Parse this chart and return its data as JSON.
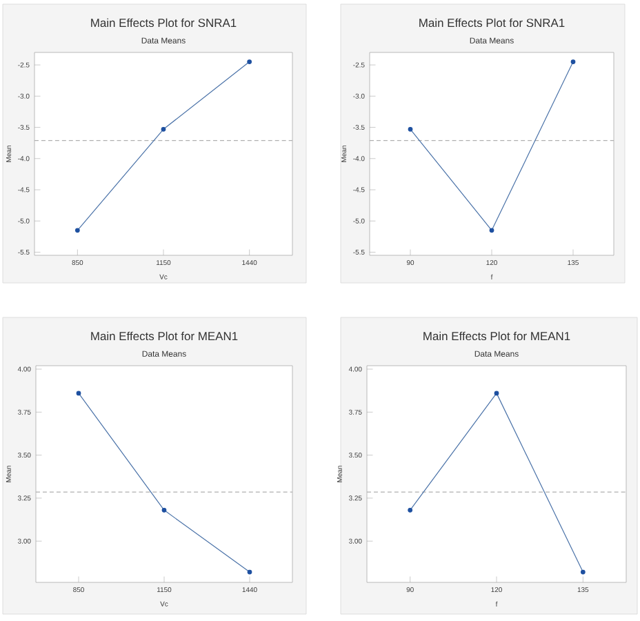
{
  "chart_data": [
    {
      "type": "line",
      "title": "Main Effects Plot for SNRA1",
      "subtitle": "Data Means",
      "xlabel": "Vc",
      "ylabel": "Mean",
      "categories": [
        "850",
        "1150",
        "1440"
      ],
      "values": [
        -5.15,
        -3.53,
        -2.45
      ],
      "color": "#4a72a8",
      "marker": "circle",
      "line_style": "solid",
      "ylim": [
        -5.55,
        -2.3
      ],
      "yticks": [
        -5.5,
        {
          "value": -5,
          "label": "-5.0"
        },
        -4.5,
        {
          "value": -4,
          "label": "-4.0"
        },
        -3.5,
        {
          "value": -3,
          "label": "-3.0"
        },
        -2.5
      ],
      "ref_lines": [
        {
          "axis": "y",
          "value": -3.71,
          "color": "#b0b0b0",
          "line_style": "dashed"
        }
      ],
      "grid": false
    },
    {
      "type": "line",
      "title": "Main Effects Plot for SNRA1",
      "subtitle": "Data Means",
      "xlabel": "f",
      "ylabel": "Mean",
      "categories": [
        "90",
        "120",
        "135"
      ],
      "values": [
        -3.53,
        -5.15,
        -2.45
      ],
      "color": "#4a72a8",
      "marker": "circle",
      "line_style": "solid",
      "ylim": [
        -5.55,
        -2.3
      ],
      "yticks": [
        -5.5,
        {
          "value": -5,
          "label": "-5.0"
        },
        -4.5,
        {
          "value": -4,
          "label": "-4.0"
        },
        -3.5,
        {
          "value": -3,
          "label": "-3.0"
        },
        -2.5
      ],
      "ref_lines": [
        {
          "axis": "y",
          "value": -3.71,
          "color": "#b0b0b0",
          "line_style": "dashed"
        }
      ],
      "grid": false
    },
    {
      "type": "line",
      "title": "Main Effects Plot for MEAN1",
      "subtitle": "Data Means",
      "xlabel": "Vc",
      "ylabel": "Mean",
      "categories": [
        "850",
        "1150",
        "1440"
      ],
      "values": [
        3.86,
        3.18,
        2.82
      ],
      "color": "#4a72a8",
      "marker": "circle",
      "line_style": "solid",
      "ylim": [
        2.76,
        4.02
      ],
      "yticks": [
        {
          "value": 3.0,
          "label": "3.00"
        },
        {
          "value": 3.25,
          "label": "3.25"
        },
        {
          "value": 3.5,
          "label": "3.50"
        },
        {
          "value": 3.75,
          "label": "3.75"
        },
        {
          "value": 4.0,
          "label": "4.00"
        }
      ],
      "ref_lines": [
        {
          "axis": "y",
          "value": 3.285,
          "color": "#b0b0b0",
          "line_style": "dashed"
        }
      ],
      "grid": false
    },
    {
      "type": "line",
      "title": "Main Effects Plot for MEAN1",
      "subtitle": "Data Means",
      "xlabel": "f",
      "ylabel": "Mean",
      "categories": [
        "90",
        "120",
        "135"
      ],
      "values": [
        3.18,
        3.86,
        2.82
      ],
      "color": "#4a72a8",
      "marker": "circle",
      "line_style": "solid",
      "ylim": [
        2.76,
        4.02
      ],
      "yticks": [
        {
          "value": 3.0,
          "label": "3.00"
        },
        {
          "value": 3.25,
          "label": "3.25"
        },
        {
          "value": 3.5,
          "label": "3.50"
        },
        {
          "value": 3.75,
          "label": "3.75"
        },
        {
          "value": 4.0,
          "label": "4.00"
        }
      ],
      "ref_lines": [
        {
          "axis": "y",
          "value": 3.285,
          "color": "#b0b0b0",
          "line_style": "dashed"
        }
      ],
      "grid": false
    }
  ]
}
